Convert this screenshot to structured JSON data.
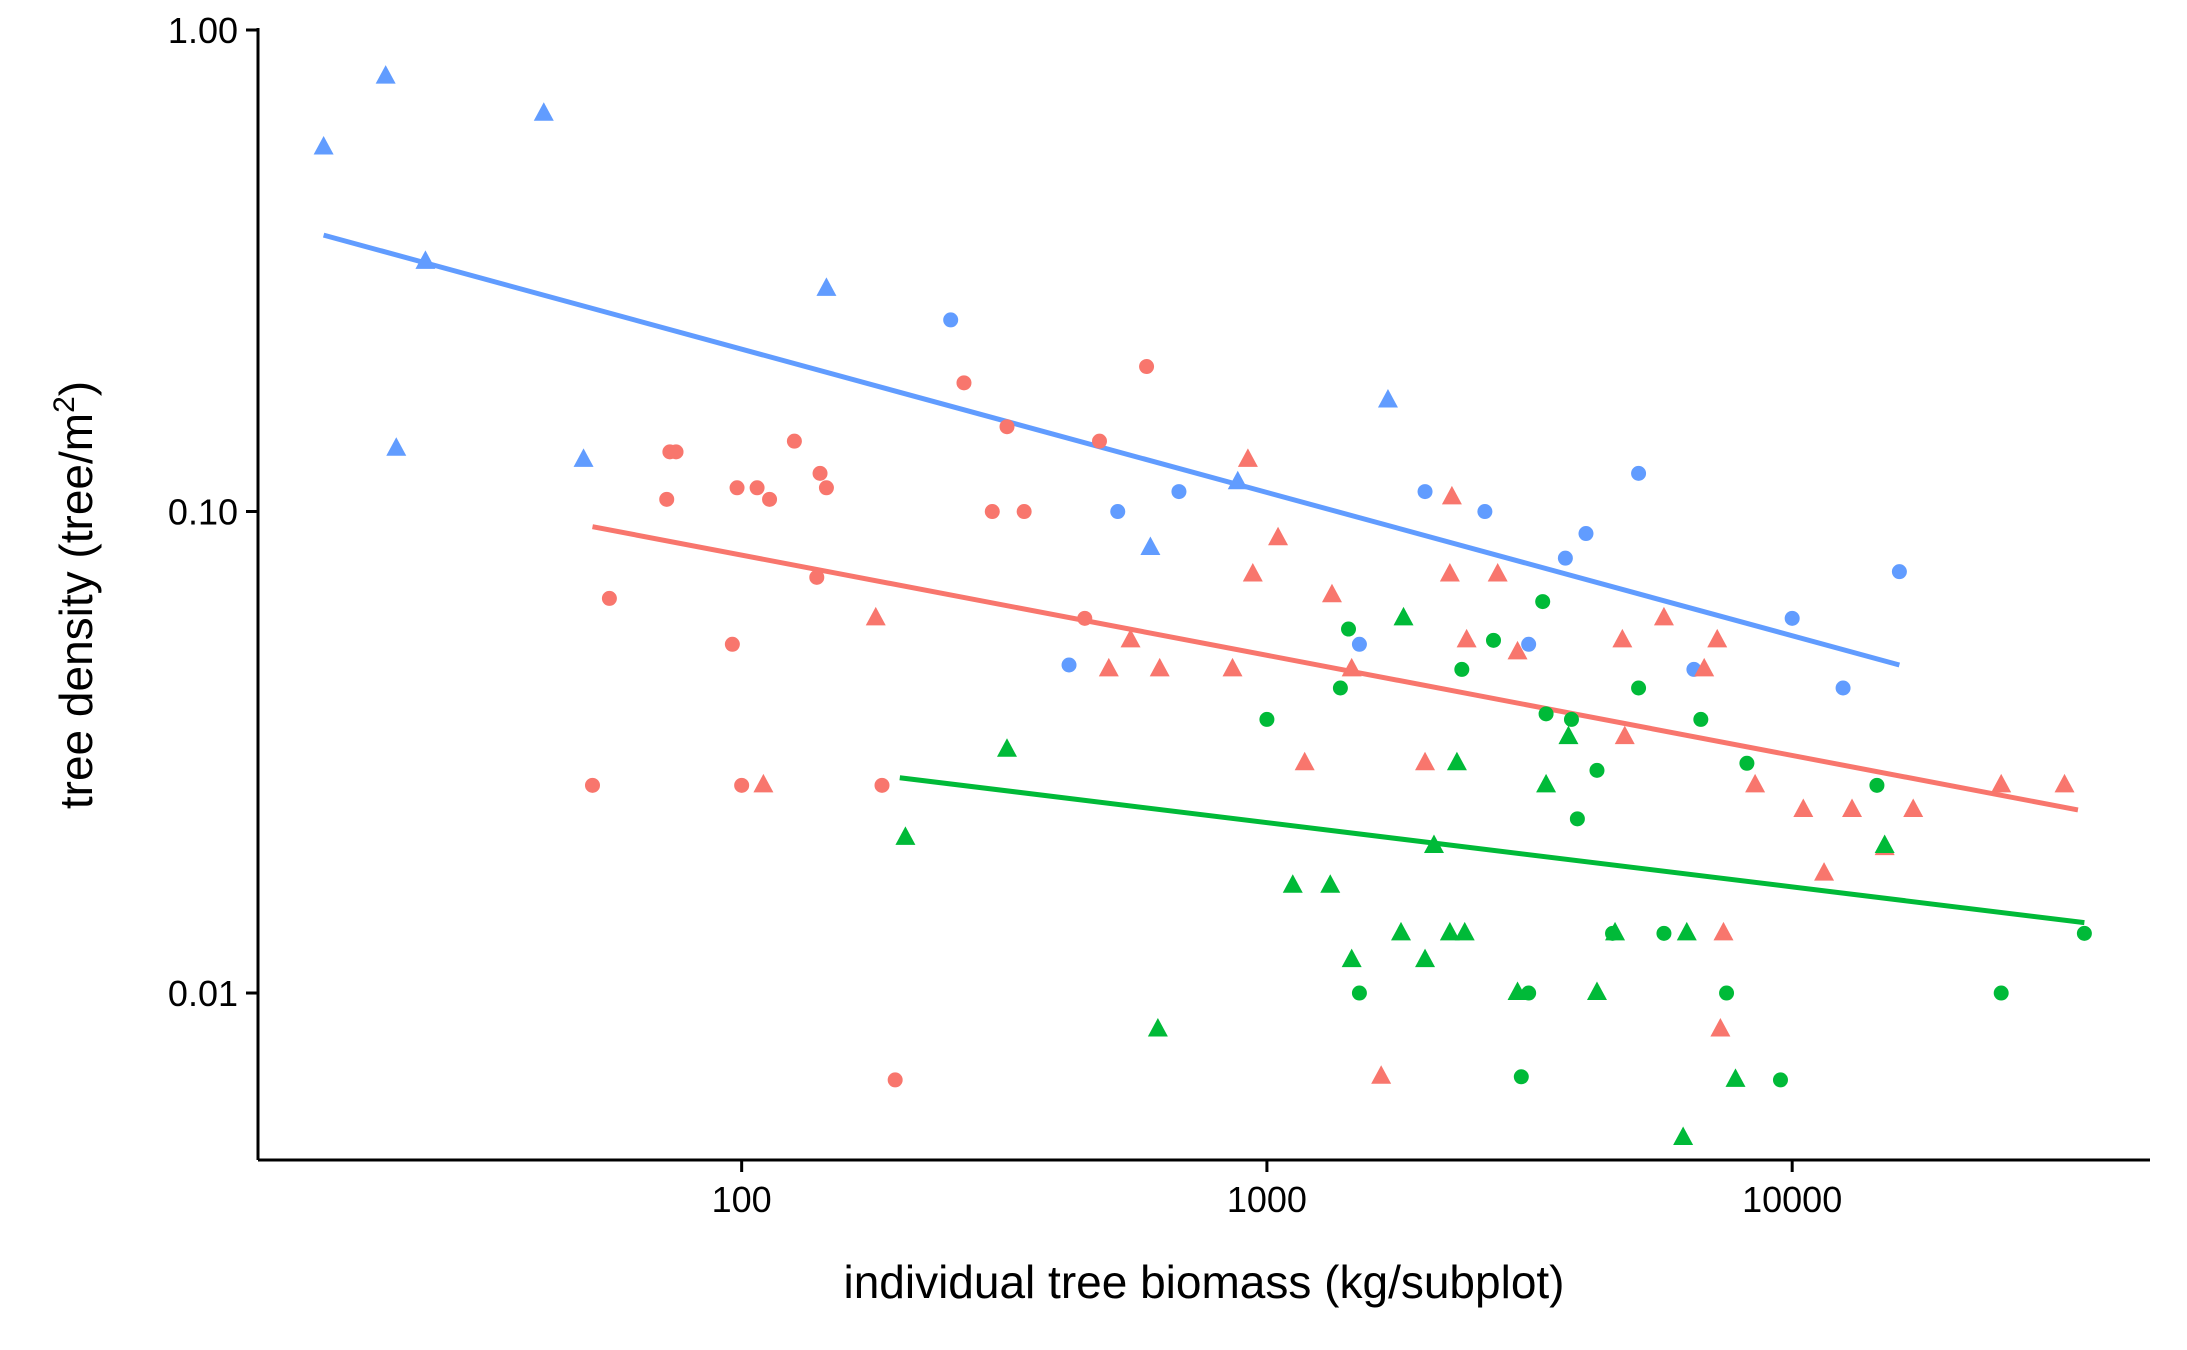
{
  "chart_data": {
    "type": "scatter",
    "xlabel": "individual tree biomass (kg/subplot)",
    "ylabel_main": "tree density (tree/m",
    "ylabel_sup": "2",
    "ylabel_close": ")",
    "x_scale": "log10",
    "y_scale": "log10",
    "xlim": [
      12,
      48000
    ],
    "ylim": [
      0.0045,
      1.0
    ],
    "x_ticks": [
      {
        "value": 100,
        "label": "100"
      },
      {
        "value": 1000,
        "label": "1000"
      },
      {
        "value": 10000,
        "label": "10000"
      }
    ],
    "y_ticks": [
      {
        "value": 1.0,
        "label": "1.00"
      },
      {
        "value": 0.1,
        "label": "0.10"
      },
      {
        "value": 0.01,
        "label": "0.01"
      }
    ],
    "grid": false,
    "legend": "none",
    "series": [
      {
        "color": "#619CFF",
        "line": [
          [
            16,
            0.375
          ],
          [
            16000,
            0.048
          ]
        ],
        "circles": [
          [
            250,
            0.25
          ],
          [
            520,
            0.1
          ],
          [
            680,
            0.11
          ],
          [
            1500,
            0.053
          ],
          [
            2000,
            0.11
          ],
          [
            2600,
            0.1
          ],
          [
            3150,
            0.053
          ],
          [
            3700,
            0.08
          ],
          [
            4050,
            0.09
          ],
          [
            5100,
            0.12
          ],
          [
            6500,
            0.047
          ],
          [
            10000,
            0.06
          ],
          [
            12500,
            0.043
          ],
          [
            16000,
            0.075
          ],
          [
            420,
            0.048
          ]
        ],
        "triangles": [
          [
            16,
            0.57
          ],
          [
            21,
            0.8
          ],
          [
            22,
            0.135
          ],
          [
            25,
            0.33
          ],
          [
            42,
            0.67
          ],
          [
            50,
            0.128
          ],
          [
            145,
            0.29
          ],
          [
            600,
            0.084
          ],
          [
            880,
            0.115
          ],
          [
            1700,
            0.17
          ]
        ]
      },
      {
        "color": "#F8766D",
        "line": [
          [
            52,
            0.093
          ],
          [
            35000,
            0.024
          ]
        ],
        "circles": [
          [
            52,
            0.027
          ],
          [
            56,
            0.066
          ],
          [
            72,
            0.106
          ],
          [
            73,
            0.133
          ],
          [
            75,
            0.133
          ],
          [
            96,
            0.053
          ],
          [
            98,
            0.112
          ],
          [
            100,
            0.027
          ],
          [
            107,
            0.112
          ],
          [
            113,
            0.106
          ],
          [
            126,
            0.14
          ],
          [
            139,
            0.073
          ],
          [
            141,
            0.12
          ],
          [
            145,
            0.112
          ],
          [
            185,
            0.027
          ],
          [
            196,
            0.0066
          ],
          [
            265,
            0.185
          ],
          [
            300,
            0.1
          ],
          [
            320,
            0.15
          ],
          [
            345,
            0.1
          ],
          [
            450,
            0.06
          ],
          [
            480,
            0.14
          ],
          [
            590,
            0.2
          ]
        ],
        "triangles": [
          [
            110,
            0.027
          ],
          [
            180,
            0.06
          ],
          [
            500,
            0.047
          ],
          [
            550,
            0.054
          ],
          [
            625,
            0.047
          ],
          [
            860,
            0.047
          ],
          [
            920,
            0.128
          ],
          [
            940,
            0.074
          ],
          [
            1050,
            0.088
          ],
          [
            1180,
            0.03
          ],
          [
            1330,
            0.067
          ],
          [
            1450,
            0.047
          ],
          [
            1650,
            0.0067
          ],
          [
            2000,
            0.03
          ],
          [
            2230,
            0.074
          ],
          [
            2250,
            0.107
          ],
          [
            2400,
            0.054
          ],
          [
            2750,
            0.074
          ],
          [
            3000,
            0.051
          ],
          [
            4750,
            0.054
          ],
          [
            4800,
            0.034
          ],
          [
            5700,
            0.06
          ],
          [
            6800,
            0.047
          ],
          [
            7200,
            0.054
          ],
          [
            7300,
            0.0084
          ],
          [
            7400,
            0.0133
          ],
          [
            8500,
            0.027
          ],
          [
            10500,
            0.024
          ],
          [
            11500,
            0.0177
          ],
          [
            13000,
            0.024
          ],
          [
            15000,
            0.02
          ],
          [
            17000,
            0.024
          ],
          [
            25000,
            0.027
          ],
          [
            33000,
            0.027
          ]
        ]
      },
      {
        "color": "#00BA38",
        "line": [
          [
            200,
            0.028
          ],
          [
            36000,
            0.014
          ]
        ],
        "circles": [
          [
            1000,
            0.037
          ],
          [
            1380,
            0.043
          ],
          [
            1430,
            0.057
          ],
          [
            1500,
            0.01
          ],
          [
            2350,
            0.047
          ],
          [
            2700,
            0.054
          ],
          [
            3050,
            0.0067
          ],
          [
            3150,
            0.01
          ],
          [
            3350,
            0.065
          ],
          [
            3400,
            0.038
          ],
          [
            3800,
            0.037
          ],
          [
            3900,
            0.023
          ],
          [
            4250,
            0.029
          ],
          [
            4550,
            0.0133
          ],
          [
            5100,
            0.043
          ],
          [
            5700,
            0.0133
          ],
          [
            6700,
            0.037
          ],
          [
            7500,
            0.01
          ],
          [
            8200,
            0.03
          ],
          [
            9500,
            0.0066
          ],
          [
            14500,
            0.027
          ],
          [
            25000,
            0.01
          ],
          [
            36000,
            0.0133
          ]
        ],
        "triangles": [
          [
            205,
            0.021
          ],
          [
            320,
            0.032
          ],
          [
            620,
            0.0084
          ],
          [
            1120,
            0.0167
          ],
          [
            1320,
            0.0167
          ],
          [
            1450,
            0.0117
          ],
          [
            1800,
            0.0133
          ],
          [
            1820,
            0.06
          ],
          [
            2000,
            0.0117
          ],
          [
            2080,
            0.0202
          ],
          [
            2230,
            0.0133
          ],
          [
            2300,
            0.03
          ],
          [
            2380,
            0.0133
          ],
          [
            3000,
            0.01
          ],
          [
            3400,
            0.027
          ],
          [
            3750,
            0.034
          ],
          [
            4250,
            0.01
          ],
          [
            4600,
            0.0133
          ],
          [
            6200,
            0.005
          ],
          [
            6300,
            0.0133
          ],
          [
            7800,
            0.0066
          ],
          [
            15000,
            0.0202
          ]
        ]
      }
    ]
  }
}
